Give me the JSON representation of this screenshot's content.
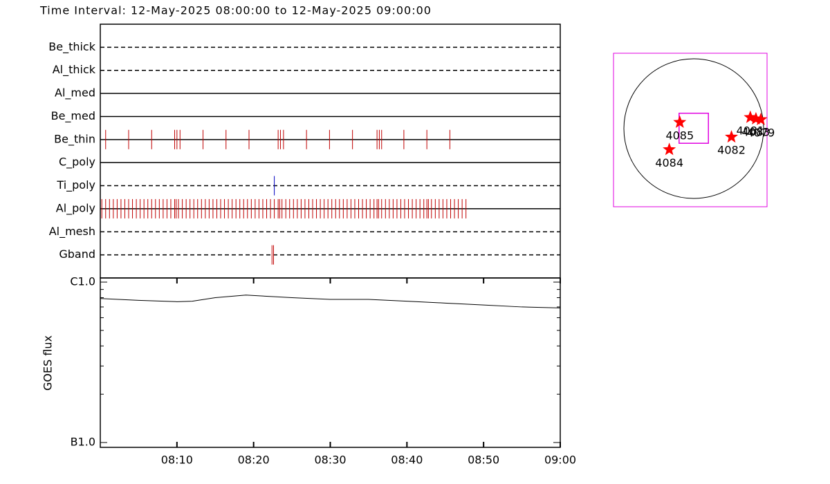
{
  "chart_data": [
    {
      "type": "timeline",
      "title": "Time Interval: 12-May-2025 08:00:00 to 12-May-2025 09:00:00",
      "xlim": [
        0,
        60
      ],
      "rows": [
        {
          "name": "Be_thick",
          "line": "dashed",
          "color": "#c00000",
          "times": []
        },
        {
          "name": "Al_thick",
          "line": "dashed",
          "color": "#c00000",
          "times": []
        },
        {
          "name": "Al_med",
          "line": "solid",
          "color": "#c00000",
          "times": []
        },
        {
          "name": "Be_med",
          "line": "solid",
          "color": "#c00000",
          "times": []
        },
        {
          "name": "Be_thin",
          "line": "solid",
          "color": "#c00000",
          "times": [
            0.7,
            3.7,
            6.7,
            9.7,
            10.0,
            10.4,
            13.4,
            16.4,
            19.4,
            23.2,
            23.5,
            23.9,
            26.9,
            29.9,
            32.9,
            36.1,
            36.4,
            36.7,
            39.6,
            42.6,
            45.6
          ]
        },
        {
          "name": "C_poly",
          "line": "solid",
          "color": "#c00000",
          "times": []
        },
        {
          "name": "Ti_poly",
          "line": "dashed",
          "color": "#0000c0",
          "times": [
            22.7
          ]
        },
        {
          "name": "Al_poly",
          "line": "solid",
          "color": "#c00000",
          "times": [
            0.2,
            0.7,
            1.2,
            1.7,
            2.2,
            2.7,
            3.2,
            3.7,
            4.2,
            4.7,
            5.2,
            5.7,
            6.2,
            6.7,
            7.2,
            7.7,
            8.2,
            8.7,
            9.2,
            9.7,
            9.9,
            10.2,
            10.7,
            11.2,
            11.7,
            12.2,
            12.7,
            13.2,
            13.7,
            14.2,
            14.7,
            15.2,
            15.7,
            16.2,
            16.7,
            17.2,
            17.7,
            18.2,
            18.7,
            19.2,
            19.7,
            20.2,
            20.7,
            21.2,
            21.7,
            22.2,
            22.7,
            23.2,
            23.4,
            23.7,
            24.2,
            24.7,
            25.2,
            25.7,
            26.2,
            26.7,
            27.2,
            27.7,
            28.2,
            28.7,
            29.2,
            29.7,
            30.2,
            30.7,
            31.2,
            31.7,
            32.2,
            32.7,
            33.2,
            33.7,
            34.2,
            34.7,
            35.2,
            35.7,
            36.1,
            36.3,
            36.7,
            37.2,
            37.7,
            38.2,
            38.7,
            39.2,
            39.7,
            40.2,
            40.7,
            41.2,
            41.7,
            42.2,
            42.6,
            42.8,
            43.2,
            43.7,
            44.2,
            44.7,
            45.2,
            45.7,
            46.2,
            46.7,
            47.2,
            47.7
          ]
        },
        {
          "name": "Al_mesh",
          "line": "dashed",
          "color": "#c00000",
          "times": []
        },
        {
          "name": "Gband",
          "line": "dashed",
          "color": "#c00000",
          "times": [
            22.4,
            22.6
          ]
        }
      ]
    },
    {
      "type": "line",
      "ylabel": "GOES flux",
      "log_y": true,
      "xlim": [
        0,
        60
      ],
      "xticks": [
        {
          "value": 10,
          "label": "08:10"
        },
        {
          "value": 20,
          "label": "08:20"
        },
        {
          "value": 30,
          "label": "08:30"
        },
        {
          "value": 40,
          "label": "08:40"
        },
        {
          "value": 50,
          "label": "08:50"
        },
        {
          "value": 60,
          "label": "09:00"
        }
      ],
      "ylim": [
        1e-07,
        1e-06
      ],
      "yticks": [
        {
          "value": 1e-07,
          "label": "B1.0"
        },
        {
          "value": 1e-06,
          "label": "C1.0"
        }
      ],
      "yminorticks": [
        2e-07,
        3e-07,
        4e-07,
        5e-07,
        6e-07,
        7e-07,
        8e-07,
        9e-07
      ],
      "color": "#000000",
      "x": [
        0,
        5,
        10,
        12,
        15,
        19,
        25,
        30,
        35,
        40,
        45,
        50,
        55,
        60
      ],
      "values": [
        7.9e-07,
        7.7e-07,
        7.55e-07,
        7.6e-07,
        8e-07,
        8.3e-07,
        8e-07,
        7.8e-07,
        7.8e-07,
        7.6e-07,
        7.4e-07,
        7.2e-07,
        7e-07,
        6.9e-07
      ]
    },
    {
      "type": "sunmap",
      "fov": {
        "xlim": [
          -0.21,
          0.21
        ],
        "ylim": [
          -0.21,
          0.22
        ]
      },
      "color": "#ff0000",
      "regions": [
        {
          "name": "4085",
          "x": -0.2,
          "y": 0.09
        },
        {
          "name": "4084",
          "x": -0.35,
          "y": -0.3
        },
        {
          "name": "4082",
          "x": 0.54,
          "y": -0.12
        },
        {
          "name": "4081",
          "x": 0.81,
          "y": 0.16
        },
        {
          "name": "4083",
          "x": 0.89,
          "y": 0.14
        },
        {
          "name": "4079",
          "x": 0.96,
          "y": 0.13
        }
      ]
    }
  ]
}
